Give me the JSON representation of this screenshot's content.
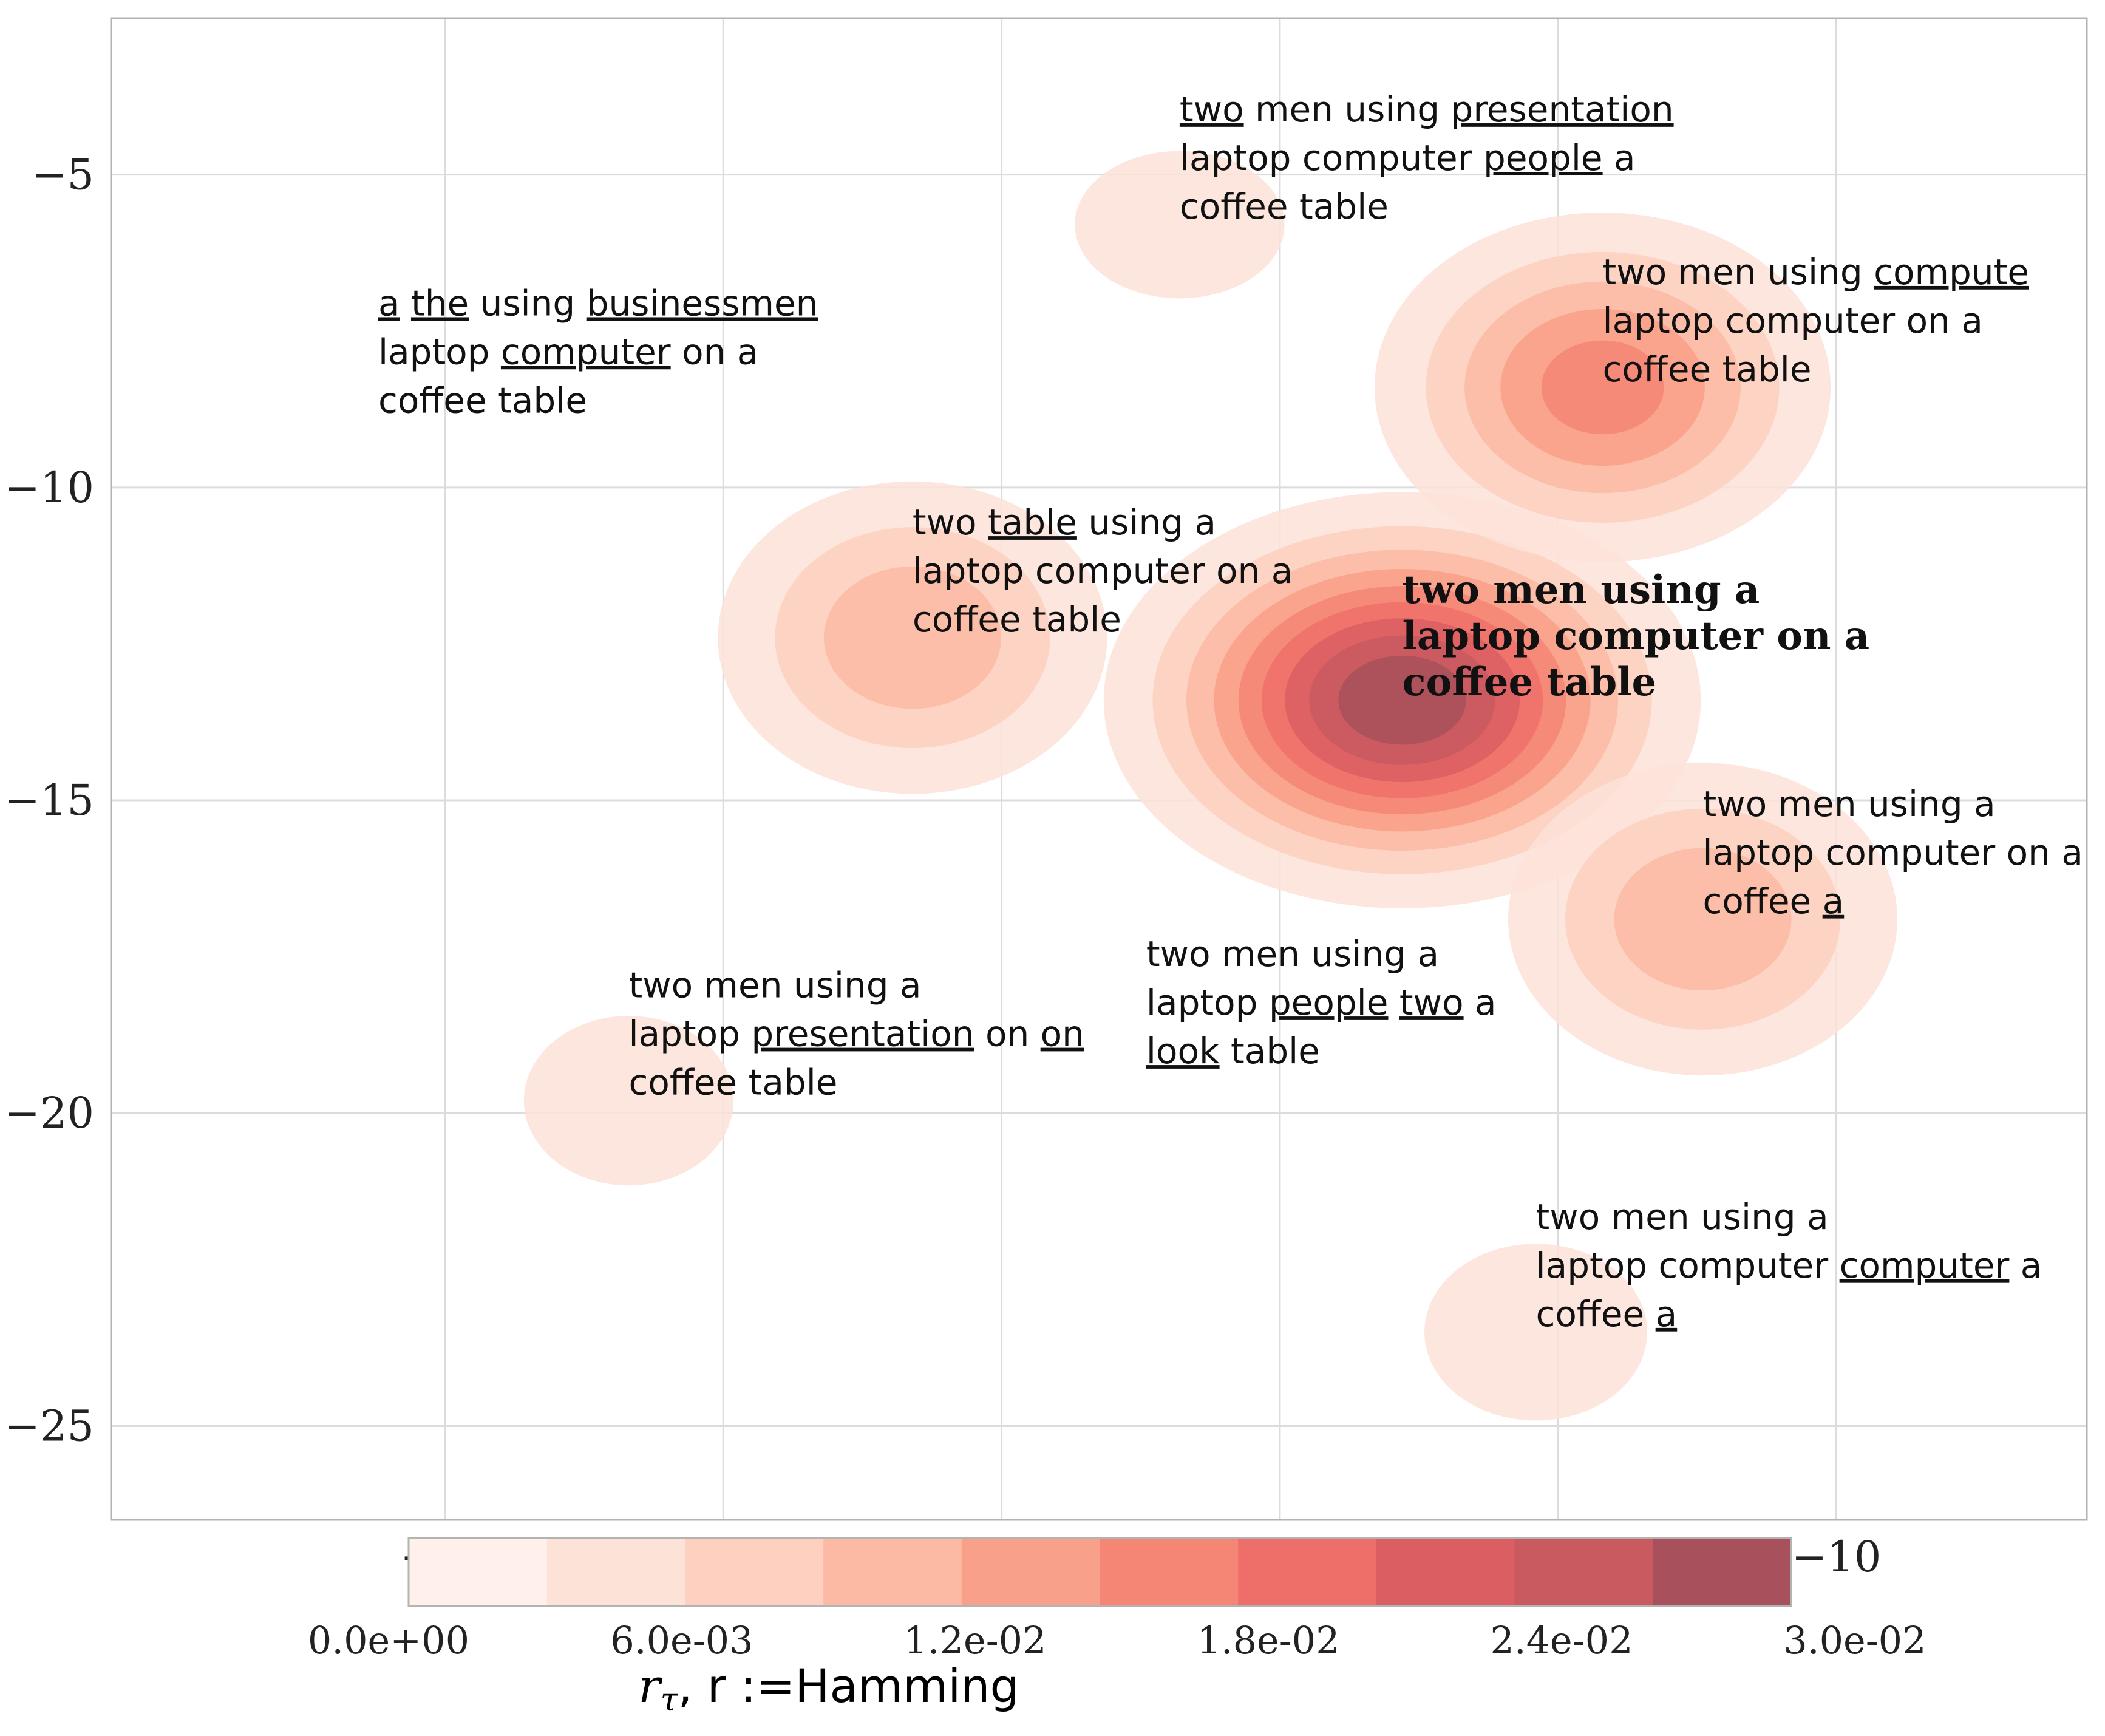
{
  "chart_data": {
    "type": "contour",
    "xticks": [
      "−35",
      "−10"
    ],
    "yticks": [
      "−5",
      "−10",
      "−15",
      "−20",
      "−25"
    ],
    "xlim": [
      -41,
      -5.5
    ],
    "ylim": [
      -26.5,
      -2.5
    ],
    "grid": true,
    "colorbar": {
      "ticks": [
        "0.0e+00",
        "6.0e-03",
        "1.2e-02",
        "1.8e-02",
        "2.4e-02",
        "3.0e-02"
      ],
      "min": 0,
      "max": 0.03,
      "levels": 10,
      "label_math": "r",
      "label_sub": "τ",
      "label_sep": ", ",
      "label_rest": "r :=Hamming",
      "colors": [
        "#fff0eb",
        "#fde2d8",
        "#fdd0bf",
        "#fcbaa4",
        "#f9a08a",
        "#f58676",
        "#ee6f6a",
        "#db5f62",
        "#c85a60",
        "#a8505b"
      ]
    },
    "points": [
      {
        "name": "original",
        "x": -17.8,
        "y": -13.4,
        "peak": 0.03,
        "sigma_x": 2.5,
        "sigma_y": 1.55,
        "bold": true,
        "lines": [
          [
            {
              "t": "two men using a",
              "u": false
            }
          ],
          [
            {
              "t": "laptop computer on a",
              "u": false
            }
          ],
          [
            {
              "t": "coffee table",
              "u": false
            }
          ]
        ]
      },
      {
        "name": "p1",
        "x": -21.8,
        "y": -5.8,
        "peak": 0.006,
        "sigma_x": 1.6,
        "sigma_y": 1.0,
        "lines": [
          [
            {
              "t": "two",
              "u": true
            },
            {
              "t": " men using ",
              "u": false
            },
            {
              "t": "presentation",
              "u": true
            }
          ],
          [
            {
              "t": "laptop computer ",
              "u": false
            },
            {
              "t": "people",
              "u": true
            },
            {
              "t": " a",
              "u": false
            }
          ],
          [
            {
              "t": "coffee table",
              "u": false
            }
          ]
        ]
      },
      {
        "name": "p2",
        "x": -36.2,
        "y": -8.9,
        "peak": 0.003,
        "sigma_x": 0.55,
        "sigma_y": 0.45,
        "lines": [
          [
            {
              "t": "a",
              "u": true
            },
            {
              "t": " ",
              "u": false
            },
            {
              "t": "the",
              "u": true
            },
            {
              "t": " using ",
              "u": false
            },
            {
              "t": "businessmen",
              "u": true
            }
          ],
          [
            {
              "t": "laptop ",
              "u": false
            },
            {
              "t": "computer",
              "u": true
            },
            {
              "t": " on a",
              "u": false
            }
          ],
          [
            {
              "t": "coffee table",
              "u": false
            }
          ]
        ]
      },
      {
        "name": "p3",
        "x": -14.2,
        "y": -8.4,
        "peak": 0.017,
        "sigma_x": 2.2,
        "sigma_y": 1.5,
        "lines": [
          [
            {
              "t": "two men using ",
              "u": false
            },
            {
              "t": "compute",
              "u": true
            }
          ],
          [
            {
              "t": "laptop computer on a",
              "u": false
            }
          ],
          [
            {
              "t": "coffee table",
              "u": false
            }
          ]
        ]
      },
      {
        "name": "p4",
        "x": -26.6,
        "y": -12.4,
        "peak": 0.012,
        "sigma_x": 2.1,
        "sigma_y": 1.5,
        "lines": [
          [
            {
              "t": "two ",
              "u": false
            },
            {
              "t": "table",
              "u": true
            },
            {
              "t": " using a",
              "u": false
            }
          ],
          [
            {
              "t": "laptop computer on a",
              "u": false
            }
          ],
          [
            {
              "t": "coffee table",
              "u": false
            }
          ]
        ]
      },
      {
        "name": "p5",
        "x": -12.4,
        "y": -16.9,
        "peak": 0.012,
        "sigma_x": 2.1,
        "sigma_y": 1.5,
        "lines": [
          [
            {
              "t": "two men using a",
              "u": false
            }
          ],
          [
            {
              "t": "laptop computer on a",
              "u": false
            }
          ],
          [
            {
              "t": "coffee ",
              "u": false
            },
            {
              "t": "a",
              "u": true
            }
          ]
        ]
      },
      {
        "name": "p6",
        "x": -31.7,
        "y": -19.8,
        "peak": 0.006,
        "sigma_x": 1.6,
        "sigma_y": 1.15,
        "lines": [
          [
            {
              "t": "two men using a",
              "u": false
            }
          ],
          [
            {
              "t": "laptop ",
              "u": false
            },
            {
              "t": "presentation",
              "u": true
            },
            {
              "t": " on ",
              "u": false
            },
            {
              "t": "on",
              "u": true
            }
          ],
          [
            {
              "t": "coffee table",
              "u": false
            }
          ]
        ]
      },
      {
        "name": "p7",
        "x": -22.4,
        "y": -19.3,
        "peak": 0.003,
        "sigma_x": 0.7,
        "sigma_y": 0.55,
        "lines": [
          [
            {
              "t": "two men using a",
              "u": false
            }
          ],
          [
            {
              "t": "laptop ",
              "u": false
            },
            {
              "t": "people",
              "u": true
            },
            {
              "t": " ",
              "u": false
            },
            {
              "t": "two",
              "u": true
            },
            {
              "t": " a",
              "u": false
            }
          ],
          [
            {
              "t": "look",
              "u": true
            },
            {
              "t": " table",
              "u": false
            }
          ]
        ]
      },
      {
        "name": "p8",
        "x": -15.4,
        "y": -23.5,
        "peak": 0.006,
        "sigma_x": 1.7,
        "sigma_y": 1.2,
        "lines": [
          [
            {
              "t": "two men using a",
              "u": false
            }
          ],
          [
            {
              "t": "laptop computer ",
              "u": false
            },
            {
              "t": "computer",
              "u": true
            },
            {
              "t": " a",
              "u": false
            }
          ],
          [
            {
              "t": "coffee ",
              "u": false
            },
            {
              "t": "a",
              "u": true
            }
          ]
        ]
      }
    ]
  }
}
